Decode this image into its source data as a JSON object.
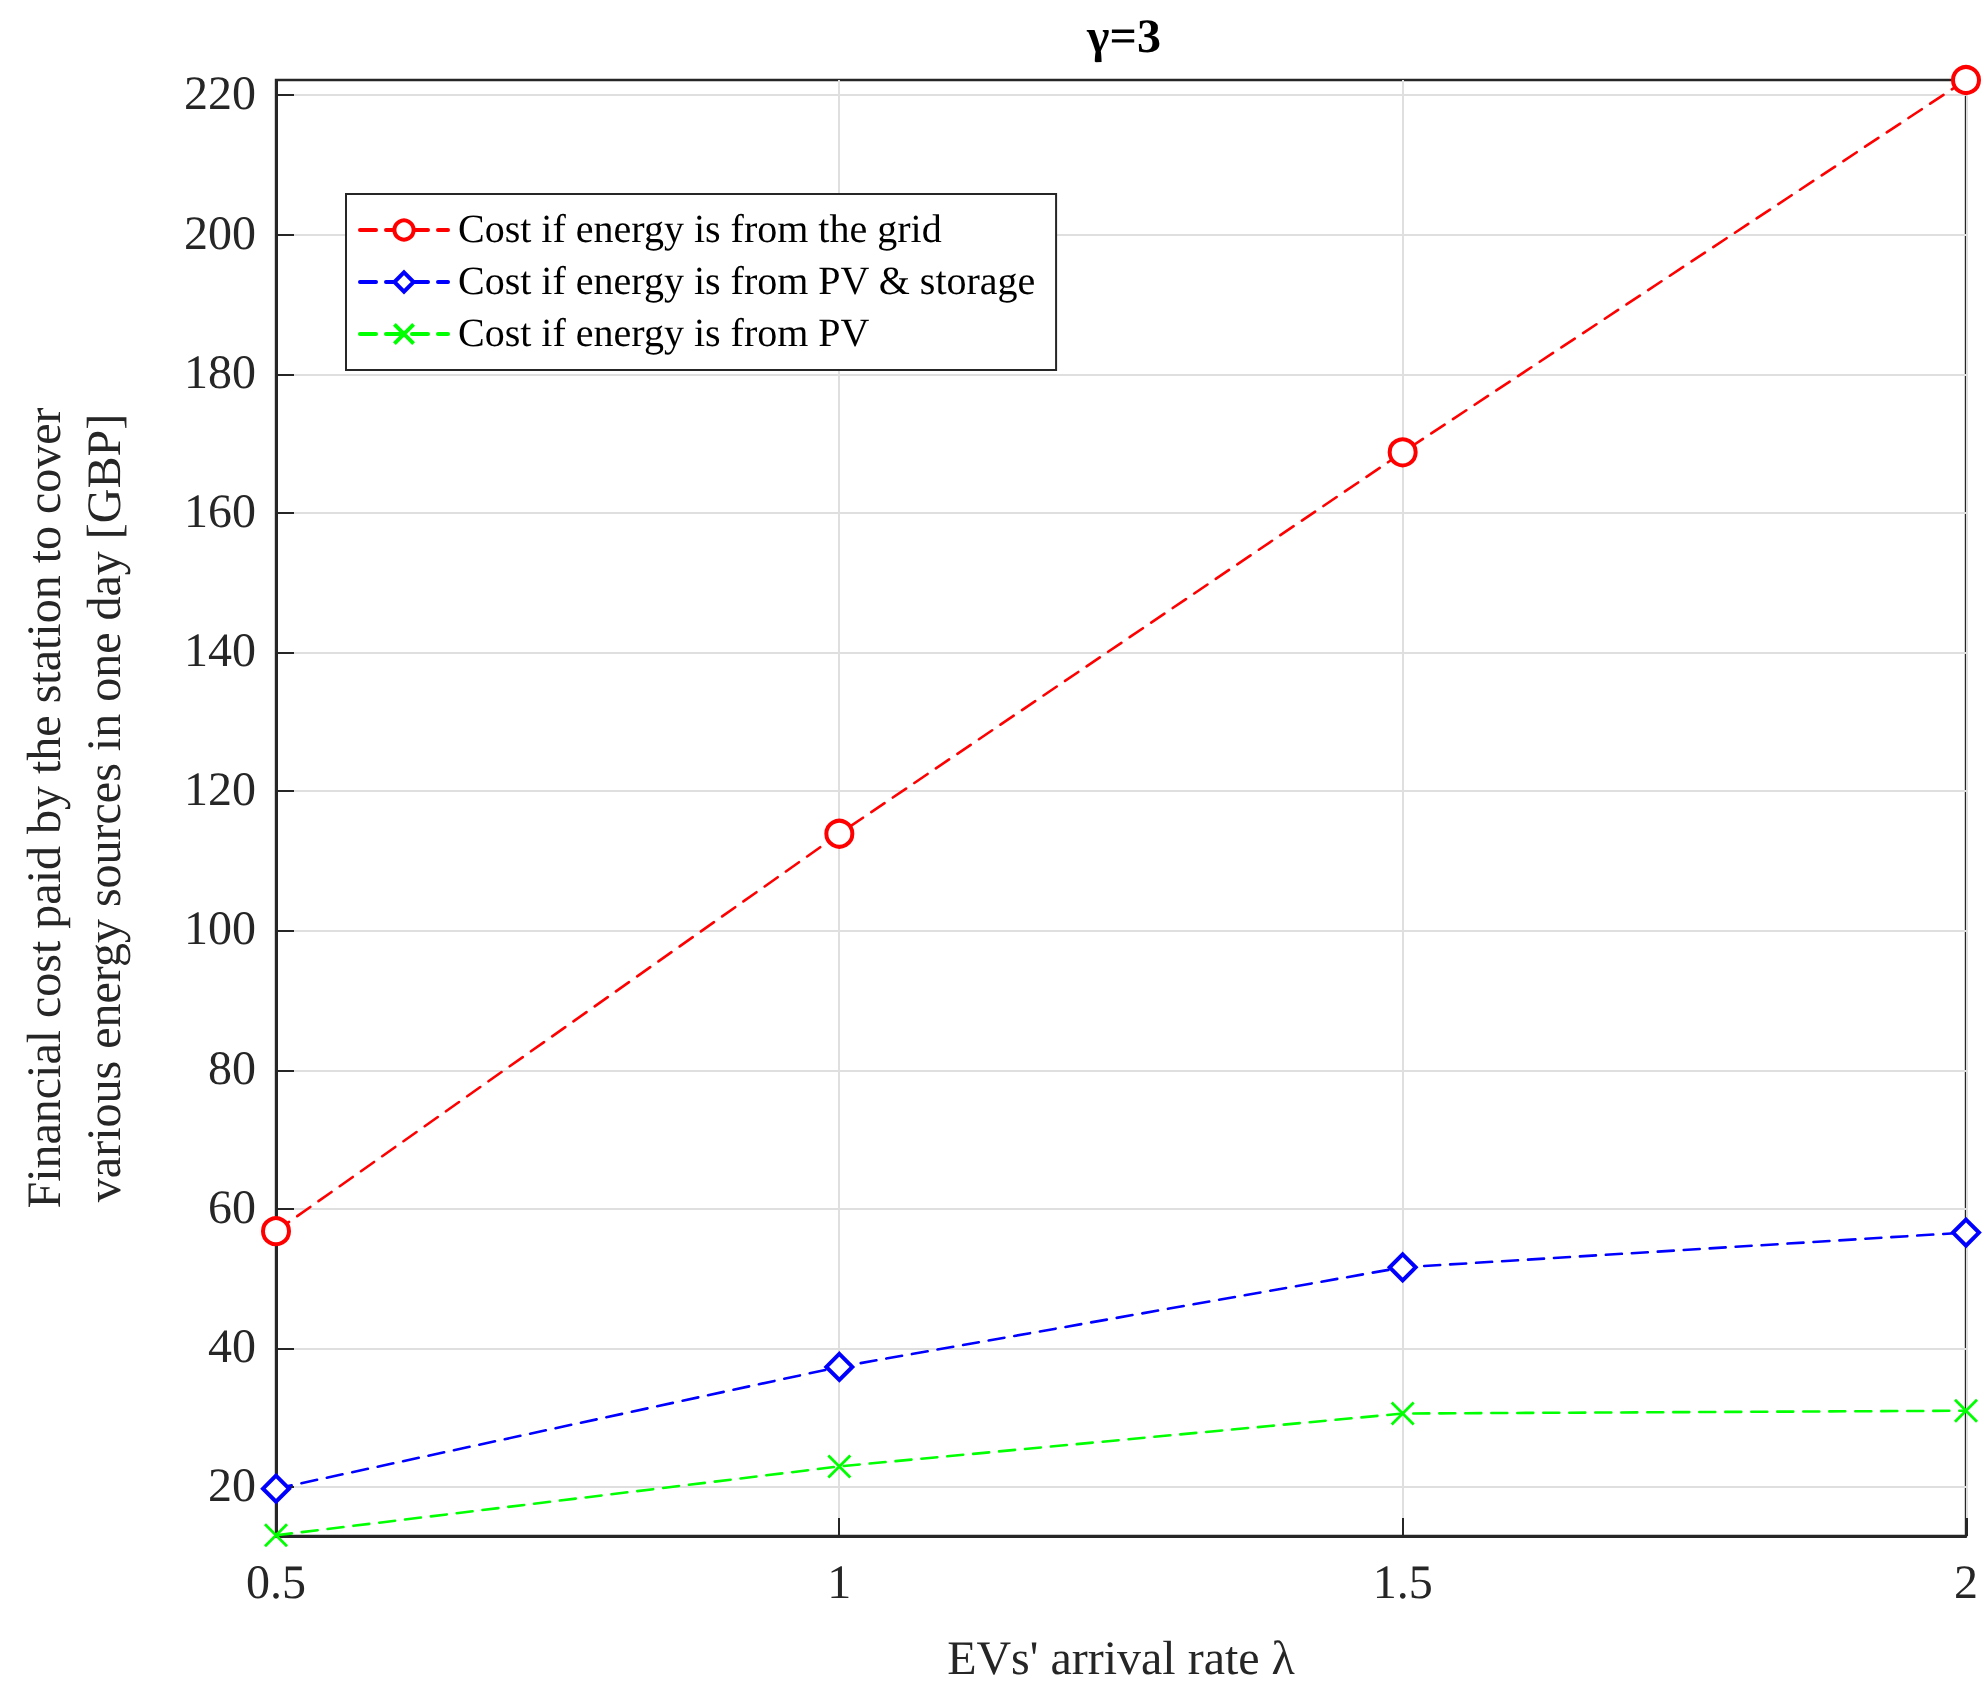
{
  "chart_data": {
    "type": "line",
    "title": "γ=3",
    "xlabel": "EVs' arrival rate λ",
    "ylabel": "Financial cost paid by the station to cover\nvarious energy sources in one day [GBP]",
    "x": [
      0.5,
      1,
      1.5,
      2
    ],
    "series": [
      {
        "name": "Cost if energy is from the grid",
        "color": "#ff0000",
        "marker": "circle",
        "values": [
          56.8,
          113.9,
          168.7,
          222.2
        ]
      },
      {
        "name": "Cost if energy is from PV & storage",
        "color": "#0000ff",
        "marker": "diamond",
        "values": [
          19.8,
          37.3,
          51.6,
          56.6
        ]
      },
      {
        "name": "Cost if energy is from PV",
        "color": "#00ff00",
        "marker": "cross",
        "values": [
          13.1,
          23.0,
          30.6,
          31.0
        ]
      }
    ],
    "xlim": [
      0.5,
      2
    ],
    "xticks": [
      0.5,
      1,
      1.5,
      2
    ],
    "ylim": [
      13,
      222.2
    ],
    "yticks": [
      20,
      40,
      60,
      80,
      100,
      120,
      140,
      160,
      180,
      200,
      220
    ],
    "grid": true,
    "legend": "top left",
    "line_style": "dashed"
  }
}
